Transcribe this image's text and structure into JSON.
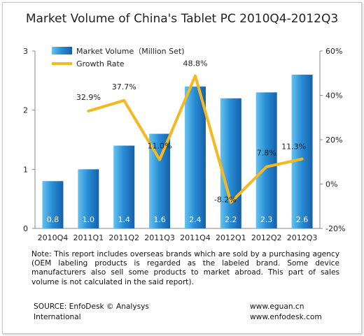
{
  "chart_data": {
    "type": "bar",
    "title": "Market Volume of China's Tablet PC 2010Q4-2012Q3",
    "categories": [
      "2010Q4",
      "2011Q1",
      "2011Q2",
      "2011Q3",
      "2011Q4",
      "2012Q1",
      "2012Q2",
      "2012Q3"
    ],
    "series": [
      {
        "name": "Market Volume（Million Set)",
        "type": "bar",
        "axis": "left",
        "values": [
          0.8,
          1.0,
          1.4,
          1.6,
          2.4,
          2.2,
          2.3,
          2.6
        ],
        "labels": [
          "0.8",
          "1.0",
          "1.4",
          "1.6",
          "2.4",
          "2.2",
          "2.3",
          "2.6"
        ],
        "color": "#2a8fd6"
      },
      {
        "name": "Growth Rate",
        "type": "line",
        "axis": "right",
        "values": [
          null,
          32.9,
          37.7,
          11.0,
          48.8,
          -8.2,
          7.8,
          11.3
        ],
        "labels": [
          "",
          "32.9%",
          "37.7%",
          "11.0%",
          "48.8%",
          "-8.2%",
          "7.8%",
          "11.3%"
        ],
        "color": "#f6b820"
      }
    ],
    "left_axis": {
      "ylim": [
        0,
        3
      ],
      "ticks": [
        "0",
        "1",
        "2",
        "3"
      ]
    },
    "right_axis": {
      "ylim": [
        -20,
        60
      ],
      "ticks": [
        "-20%",
        "0%",
        "20%",
        "40%",
        "60%"
      ]
    },
    "legend_position": "top-left",
    "grid": false
  },
  "note": "Note:  This report includes  overseas brands which are sold by a purchasing agency (OEM labeling products is regarded as the labeled brand. Some device manufacturers also sell some products to market abroad. This part of sales volume is not calculated in the said report).",
  "source": "SOURCE: EnfoDesk © Analysys International",
  "websites": [
    "www.eguan.cn",
    "www.enfodesk.com"
  ]
}
